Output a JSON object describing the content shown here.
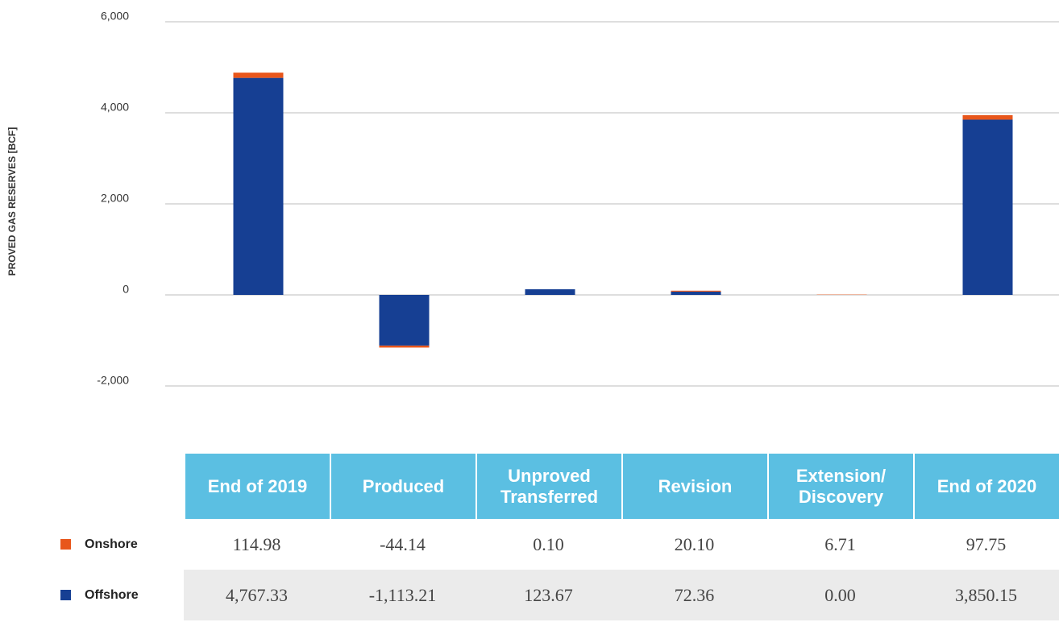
{
  "chart_data": {
    "type": "bar",
    "stacked": true,
    "ylabel": "PROVED GAS RESERVES [BCF]",
    "categories": [
      "End of 2019",
      "Produced",
      "Unproved Transferred",
      "Revision",
      "Extension/ Discovery",
      "End of 2020"
    ],
    "series": [
      {
        "name": "Offshore",
        "color": "#163f93",
        "values": [
          4767.33,
          -1113.21,
          123.67,
          72.36,
          0.0,
          3850.15
        ],
        "value_labels": [
          "4,767.33",
          "-1,113.21",
          "123.67",
          "72.36",
          "0.00",
          "3,850.15"
        ]
      },
      {
        "name": "Onshore",
        "color": "#e8561b",
        "values": [
          114.98,
          -44.14,
          0.1,
          20.1,
          6.71,
          97.75
        ],
        "value_labels": [
          "114.98",
          "-44.14",
          "0.10",
          "20.10",
          "6.71",
          "97.75"
        ]
      }
    ],
    "ylim": [
      -2000,
      6000
    ],
    "yticks": [
      {
        "value": -2000,
        "label": "-2,000"
      },
      0,
      {
        "value": 2000,
        "label": "2,000"
      },
      {
        "value": 4000,
        "label": "4,000"
      },
      {
        "value": 6000,
        "label": "6,000"
      }
    ],
    "grid": true
  }
}
